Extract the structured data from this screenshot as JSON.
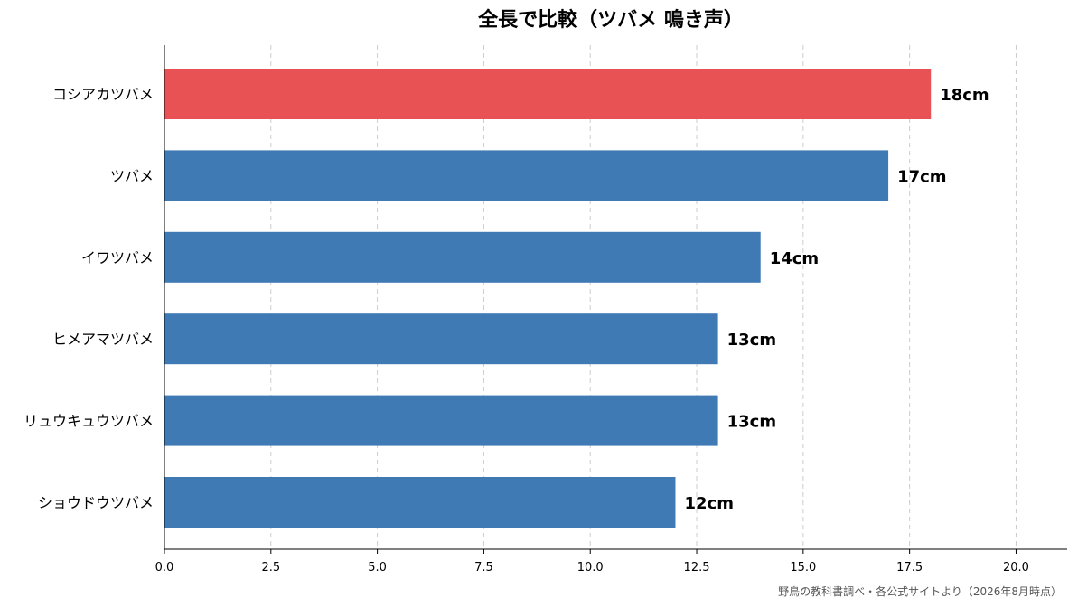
{
  "chart_data": {
    "type": "bar",
    "orientation": "horizontal",
    "title": "全長で比較（ツバメ 鳴き声）",
    "xlabel": "",
    "ylabel": "",
    "categories": [
      "コシアカツバメ",
      "ツバメ",
      "イワツバメ",
      "ヒメアマツバメ",
      "リュウキュウツバメ",
      "ショウドウツバメ"
    ],
    "values": [
      18,
      17,
      14,
      13,
      13,
      12
    ],
    "value_labels": [
      "18cm",
      "17cm",
      "14cm",
      "13cm",
      "13cm",
      "12cm"
    ],
    "highlight_index": 0,
    "colors": {
      "highlight": "#e85254",
      "default": "#3f7ab5"
    },
    "xlim": [
      0,
      21.2
    ],
    "xticks": [
      0,
      2.5,
      5,
      7.5,
      10,
      12.5,
      15,
      17.5,
      20
    ],
    "xtick_labels": [
      "0.0",
      "2.5",
      "5.0",
      "7.5",
      "10.0",
      "12.5",
      "15.0",
      "17.5",
      "20.0"
    ],
    "grid": "x-dashed",
    "legend": "none"
  },
  "source_note": "野鳥の教科書調べ・各公式サイトより（2026年8月時点）"
}
